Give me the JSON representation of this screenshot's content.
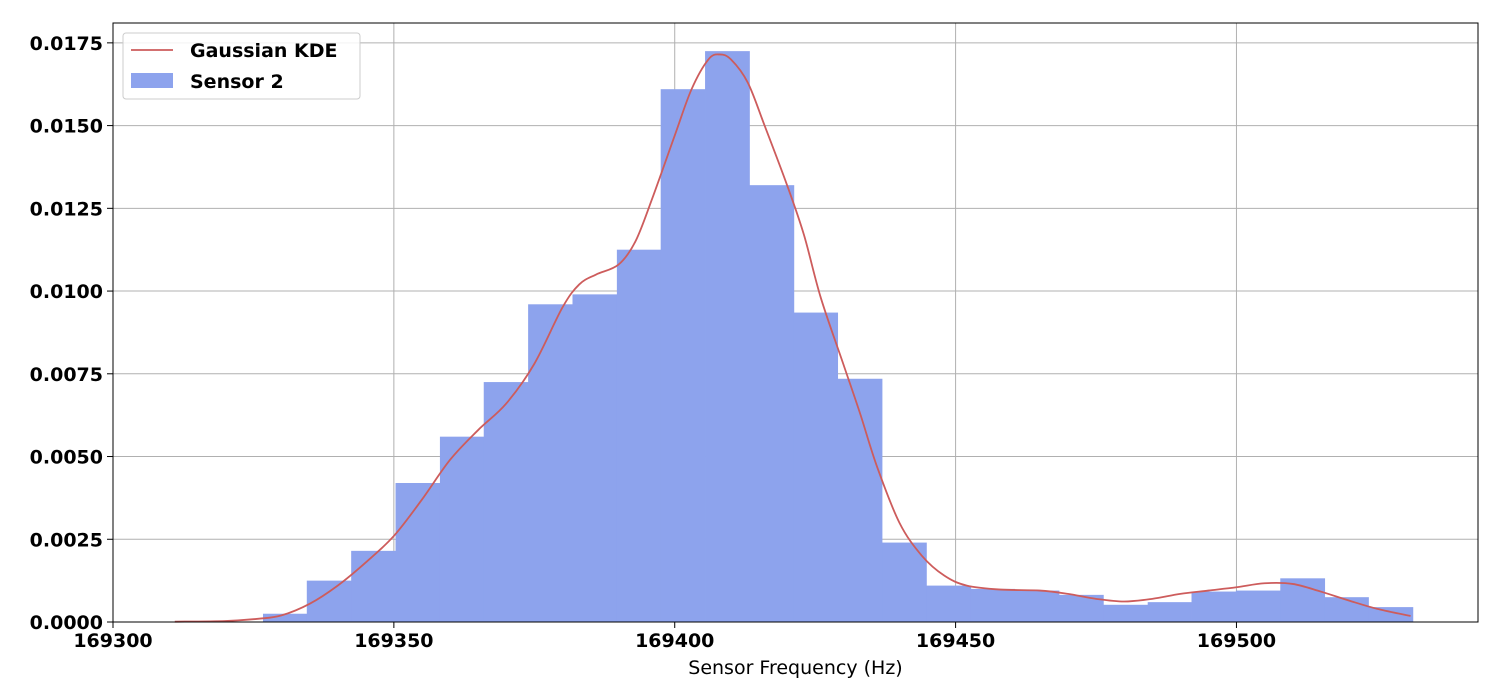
{
  "chart_data": {
    "type": "bar",
    "subtype": "histogram-with-kde",
    "title": "",
    "xlabel": "Sensor Frequency (Hz)",
    "ylabel": "",
    "xlim": [
      169300,
      169543
    ],
    "ylim": [
      0,
      0.0181
    ],
    "grid": true,
    "legend_position": "top-left",
    "x_ticks": [
      169300,
      169350,
      169400,
      169450,
      169500
    ],
    "x_tick_labels": [
      "169300",
      "169350",
      "169400",
      "169450",
      "169500"
    ],
    "y_ticks": [
      0,
      0.0025,
      0.005,
      0.0075,
      0.01,
      0.0125,
      0.015,
      0.0175
    ],
    "y_tick_labels": [
      "0.0000",
      "0.0025",
      "0.0050",
      "0.0075",
      "0.0100",
      "0.0125",
      "0.0150",
      "0.0175"
    ],
    "series": [
      {
        "name": "Sensor 2",
        "kind": "histogram",
        "color": "#8da3ed",
        "bins": [
          {
            "x0": 169326.7,
            "x1": 169334.5,
            "value": 0.00025
          },
          {
            "x0": 169334.5,
            "x1": 169342.4,
            "value": 0.00125
          },
          {
            "x0": 169342.4,
            "x1": 169350.3,
            "value": 0.00215
          },
          {
            "x0": 169350.3,
            "x1": 169358.2,
            "value": 0.0042
          },
          {
            "x0": 169358.2,
            "x1": 169366.0,
            "value": 0.0056
          },
          {
            "x0": 169366.0,
            "x1": 169373.9,
            "value": 0.00725
          },
          {
            "x0": 169373.9,
            "x1": 169381.8,
            "value": 0.0096
          },
          {
            "x0": 169381.8,
            "x1": 169389.7,
            "value": 0.0099
          },
          {
            "x0": 169389.7,
            "x1": 169397.5,
            "value": 0.01125
          },
          {
            "x0": 169397.5,
            "x1": 169405.4,
            "value": 0.0161
          },
          {
            "x0": 169405.4,
            "x1": 169413.3,
            "value": 0.01725
          },
          {
            "x0": 169413.3,
            "x1": 169421.2,
            "value": 0.0132
          },
          {
            "x0": 169421.2,
            "x1": 169429.0,
            "value": 0.00935
          },
          {
            "x0": 169429.0,
            "x1": 169436.9,
            "value": 0.00735
          },
          {
            "x0": 169436.9,
            "x1": 169444.8,
            "value": 0.0024
          },
          {
            "x0": 169444.8,
            "x1": 169452.7,
            "value": 0.0011
          },
          {
            "x0": 169452.7,
            "x1": 169460.5,
            "value": 0.001
          },
          {
            "x0": 169460.5,
            "x1": 169468.4,
            "value": 0.00095
          },
          {
            "x0": 169468.4,
            "x1": 169476.3,
            "value": 0.00082
          },
          {
            "x0": 169476.3,
            "x1": 169484.2,
            "value": 0.00052
          },
          {
            "x0": 169484.2,
            "x1": 169492.0,
            "value": 0.0006
          },
          {
            "x0": 169492.0,
            "x1": 169499.9,
            "value": 0.00092
          },
          {
            "x0": 169499.9,
            "x1": 169507.8,
            "value": 0.00095
          },
          {
            "x0": 169507.8,
            "x1": 169515.7,
            "value": 0.00132
          },
          {
            "x0": 169515.7,
            "x1": 169523.5,
            "value": 0.00075
          },
          {
            "x0": 169523.5,
            "x1": 169531.4,
            "value": 0.00045
          }
        ]
      },
      {
        "name": "Gaussian KDE",
        "kind": "line",
        "color": "#cd5c5c",
        "points": [
          [
            169311,
            1e-05
          ],
          [
            169320,
            3e-05
          ],
          [
            169326,
            0.0001
          ],
          [
            169330,
            0.0002
          ],
          [
            169335,
            0.00055
          ],
          [
            169340,
            0.0011
          ],
          [
            169345,
            0.0018
          ],
          [
            169350,
            0.0026
          ],
          [
            169355,
            0.0037
          ],
          [
            169360,
            0.0049
          ],
          [
            169365,
            0.0058
          ],
          [
            169370,
            0.0066
          ],
          [
            169375,
            0.0078
          ],
          [
            169380,
            0.0095
          ],
          [
            169383,
            0.0102
          ],
          [
            169386,
            0.0105
          ],
          [
            169390,
            0.0108
          ],
          [
            169393,
            0.0115
          ],
          [
            169396,
            0.0128
          ],
          [
            169400,
            0.0147
          ],
          [
            169403,
            0.0161
          ],
          [
            169406,
            0.017
          ],
          [
            169408,
            0.01715
          ],
          [
            169410,
            0.017
          ],
          [
            169413,
            0.0163
          ],
          [
            169416,
            0.015
          ],
          [
            169420,
            0.0132
          ],
          [
            169423,
            0.0117
          ],
          [
            169426,
            0.0098
          ],
          [
            169430,
            0.0078
          ],
          [
            169433,
            0.0063
          ],
          [
            169436,
            0.0047
          ],
          [
            169440,
            0.003
          ],
          [
            169444,
            0.002
          ],
          [
            169448,
            0.0014
          ],
          [
            169452,
            0.0011
          ],
          [
            169458,
            0.00098
          ],
          [
            169465,
            0.00095
          ],
          [
            169470,
            0.00085
          ],
          [
            169475,
            0.0007
          ],
          [
            169480,
            0.00062
          ],
          [
            169485,
            0.0007
          ],
          [
            169490,
            0.00085
          ],
          [
            169495,
            0.00095
          ],
          [
            169500,
            0.00105
          ],
          [
            169505,
            0.00117
          ],
          [
            169510,
            0.00115
          ],
          [
            169515,
            0.00092
          ],
          [
            169520,
            0.00065
          ],
          [
            169525,
            0.0004
          ],
          [
            169531,
            0.00018
          ]
        ]
      }
    ]
  }
}
